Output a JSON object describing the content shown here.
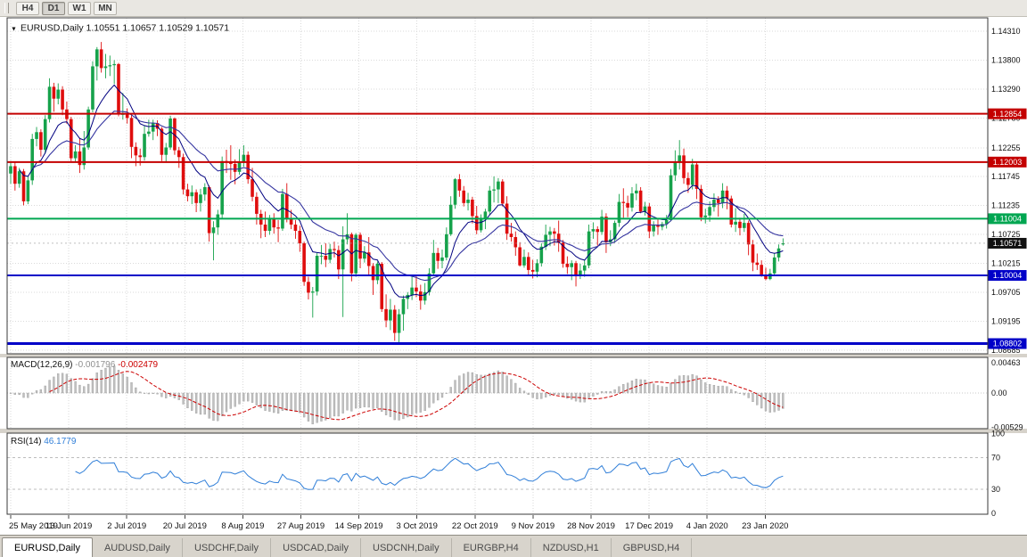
{
  "toolbar": {
    "buttons": [
      {
        "label": "H4",
        "active": false
      },
      {
        "label": "D1",
        "active": true
      },
      {
        "label": "W1",
        "active": false
      },
      {
        "label": "MN",
        "active": false
      }
    ]
  },
  "chart": {
    "title_symbol": "EURUSD,Daily",
    "ohlc": "1.10551 1.10657 1.10529 1.10571"
  },
  "chart_data": {
    "type": "candlestick",
    "symbol": "EURUSD",
    "timeframe": "Daily",
    "price_axis": [
      "1.14310",
      "1.13800",
      "1.13290",
      "1.12780",
      "1.12255",
      "1.11745",
      "1.11235",
      "1.10725",
      "1.10215",
      "1.09705",
      "1.09195",
      "1.08685"
    ],
    "x_labels": [
      "25 May 2019",
      "13 Jun 2019",
      "2 Jul 2019",
      "20 Jul 2019",
      "8 Aug 2019",
      "27 Aug 2019",
      "14 Sep 2019",
      "3 Oct 2019",
      "22 Oct 2019",
      "9 Nov 2019",
      "28 Nov 2019",
      "17 Dec 2019",
      "4 Jan 2020",
      "23 Jan 2020"
    ],
    "levels": [
      {
        "price": 1.12854,
        "label": "1.12854",
        "color": "#c40000",
        "width": 2
      },
      {
        "price": 1.12003,
        "label": "1.12003",
        "color": "#c40000",
        "width": 2
      },
      {
        "price": 1.11004,
        "label": "1.11004",
        "color": "#00a651",
        "width": 2
      },
      {
        "price": 1.10004,
        "label": "1.10004",
        "color": "#0000c8",
        "width": 2
      },
      {
        "price": 1.08802,
        "label": "1.08802",
        "color": "#0000c8",
        "width": 3
      }
    ],
    "current_price": {
      "value": 1.10571,
      "label": "1.10571",
      "color": "#111111"
    },
    "indicators": [
      {
        "name": "MACD",
        "label": "MACD(12,26,9)",
        "values": [
          "-0.001796",
          "-0.002479"
        ],
        "axis": [
          "0.00463",
          "0.00",
          "-0.00529"
        ]
      },
      {
        "name": "RSI",
        "label": "RSI(14)",
        "value": "46.1779",
        "axis": [
          "100",
          "70",
          "30",
          "0"
        ],
        "levels": [
          70,
          30
        ]
      }
    ],
    "colors": {
      "up": "#16a24b",
      "down": "#df0d0d",
      "ma_fast": "#000080",
      "ma_slow": "#3535a0",
      "macd_hist": "#c0c0c0",
      "macd_signal": "#cc0000",
      "rsi": "#2f7ed8"
    },
    "candles": [
      [
        1.118,
        1.1202,
        1.1162,
        1.1193
      ],
      [
        1.1193,
        1.12,
        1.115,
        1.1162
      ],
      [
        1.1162,
        1.119,
        1.1155,
        1.1184
      ],
      [
        1.1184,
        1.1188,
        1.1124,
        1.1131
      ],
      [
        1.1131,
        1.1175,
        1.1126,
        1.1168
      ],
      [
        1.1168,
        1.125,
        1.116,
        1.1241
      ],
      [
        1.1241,
        1.1262,
        1.1228,
        1.1253
      ],
      [
        1.1253,
        1.1258,
        1.121,
        1.1222
      ],
      [
        1.1222,
        1.1283,
        1.1215,
        1.1276
      ],
      [
        1.1276,
        1.1348,
        1.127,
        1.1333
      ],
      [
        1.1333,
        1.134,
        1.1289,
        1.1312
      ],
      [
        1.1312,
        1.1339,
        1.1302,
        1.1328
      ],
      [
        1.1328,
        1.1334,
        1.1283,
        1.1293
      ],
      [
        1.1293,
        1.1307,
        1.1268,
        1.1276
      ],
      [
        1.1276,
        1.128,
        1.1202,
        1.1207
      ],
      [
        1.1207,
        1.123,
        1.12,
        1.1219
      ],
      [
        1.1219,
        1.1243,
        1.1181,
        1.1195
      ],
      [
        1.1195,
        1.1255,
        1.1187,
        1.1226
      ],
      [
        1.1226,
        1.1298,
        1.1222,
        1.1293
      ],
      [
        1.1293,
        1.1378,
        1.1288,
        1.1369
      ],
      [
        1.1369,
        1.1403,
        1.1344,
        1.1399
      ],
      [
        1.1399,
        1.1412,
        1.1358,
        1.1366
      ],
      [
        1.1366,
        1.1391,
        1.1348,
        1.1369
      ],
      [
        1.1369,
        1.1388,
        1.1352,
        1.1371
      ],
      [
        1.1371,
        1.138,
        1.1338,
        1.1373
      ],
      [
        1.1373,
        1.1375,
        1.1281,
        1.1285
      ],
      [
        1.1285,
        1.1322,
        1.1275,
        1.1285
      ],
      [
        1.1285,
        1.1295,
        1.1268,
        1.1278
      ],
      [
        1.1278,
        1.1286,
        1.1207,
        1.1227
      ],
      [
        1.1227,
        1.1235,
        1.1193,
        1.1212
      ],
      [
        1.1212,
        1.1224,
        1.1194,
        1.1209
      ],
      [
        1.1209,
        1.1264,
        1.1203,
        1.125
      ],
      [
        1.125,
        1.1275,
        1.1245,
        1.1254
      ],
      [
        1.1254,
        1.1275,
        1.1239,
        1.1269
      ],
      [
        1.1269,
        1.1274,
        1.1246,
        1.1259
      ],
      [
        1.1259,
        1.1262,
        1.1202,
        1.1213
      ],
      [
        1.1213,
        1.1234,
        1.1199,
        1.1226
      ],
      [
        1.1226,
        1.1282,
        1.1222,
        1.1277
      ],
      [
        1.1277,
        1.1279,
        1.1213,
        1.1221
      ],
      [
        1.1221,
        1.1227,
        1.119,
        1.1209
      ],
      [
        1.1209,
        1.1215,
        1.1143,
        1.1152
      ],
      [
        1.1152,
        1.1162,
        1.1131,
        1.114
      ],
      [
        1.114,
        1.1159,
        1.1126,
        1.1147
      ],
      [
        1.1147,
        1.1152,
        1.1112,
        1.1128
      ],
      [
        1.1128,
        1.1153,
        1.1113,
        1.1143
      ],
      [
        1.1143,
        1.1163,
        1.1132,
        1.1156
      ],
      [
        1.1156,
        1.1159,
        1.106,
        1.1075
      ],
      [
        1.1075,
        1.1096,
        1.1027,
        1.1085
      ],
      [
        1.1085,
        1.1116,
        1.1072,
        1.1108
      ],
      [
        1.1108,
        1.121,
        1.1101,
        1.1202
      ],
      [
        1.1202,
        1.1222,
        1.1181,
        1.12
      ],
      [
        1.12,
        1.123,
        1.1169,
        1.1197
      ],
      [
        1.1197,
        1.1205,
        1.1161,
        1.1183
      ],
      [
        1.1183,
        1.1223,
        1.1178,
        1.1199
      ],
      [
        1.1199,
        1.123,
        1.1192,
        1.1213
      ],
      [
        1.1213,
        1.1219,
        1.1162,
        1.117
      ],
      [
        1.117,
        1.119,
        1.1131,
        1.1139
      ],
      [
        1.1139,
        1.1147,
        1.109,
        1.1109
      ],
      [
        1.1109,
        1.1116,
        1.1066,
        1.109
      ],
      [
        1.109,
        1.1113,
        1.1068,
        1.1079
      ],
      [
        1.1079,
        1.1107,
        1.1072,
        1.11
      ],
      [
        1.11,
        1.111,
        1.1074,
        1.1085
      ],
      [
        1.1085,
        1.1098,
        1.1059,
        1.1083
      ],
      [
        1.1083,
        1.1153,
        1.1079,
        1.1144
      ],
      [
        1.1144,
        1.1163,
        1.1094,
        1.1101
      ],
      [
        1.1101,
        1.1116,
        1.1082,
        1.109
      ],
      [
        1.109,
        1.1098,
        1.1065,
        1.1079
      ],
      [
        1.1079,
        1.1088,
        1.1042,
        1.1057
      ],
      [
        1.1057,
        1.106,
        1.0982,
        1.0989
      ],
      [
        1.0989,
        1.0998,
        1.0958,
        1.097
      ],
      [
        1.097,
        1.098,
        1.0926,
        1.0972
      ],
      [
        1.0972,
        1.104,
        1.0965,
        1.1035
      ],
      [
        1.1035,
        1.1054,
        1.102,
        1.1035
      ],
      [
        1.1035,
        1.1057,
        1.1015,
        1.1028
      ],
      [
        1.1028,
        1.1056,
        1.1022,
        1.1047
      ],
      [
        1.1047,
        1.106,
        1.1032,
        1.1045
      ],
      [
        1.1045,
        1.1053,
        1.0994,
        1.1011
      ],
      [
        1.1011,
        1.1087,
        1.0927,
        1.1064
      ],
      [
        1.1064,
        1.111,
        1.1055,
        1.1073
      ],
      [
        1.1073,
        1.1076,
        1.099,
        1.1004
      ],
      [
        1.1004,
        1.1075,
        1.0998,
        1.1072
      ],
      [
        1.1072,
        1.1076,
        1.1013,
        1.103
      ],
      [
        1.103,
        1.1052,
        1.1023,
        1.1041
      ],
      [
        1.1041,
        1.1068,
        1.0999,
        1.1017
      ],
      [
        1.1017,
        1.1022,
        1.0966,
        1.0992
      ],
      [
        1.0992,
        1.1025,
        1.0985,
        1.1021
      ],
      [
        1.1021,
        1.1024,
        1.0936,
        1.0941
      ],
      [
        1.0941,
        1.0967,
        1.0909,
        1.0921
      ],
      [
        1.0921,
        1.0959,
        1.0904,
        1.094
      ],
      [
        1.094,
        1.0948,
        1.0885,
        1.0899
      ],
      [
        1.0899,
        1.0941,
        1.0879,
        1.0932
      ],
      [
        1.0932,
        1.0965,
        1.0903,
        1.0959
      ],
      [
        1.0959,
        1.0971,
        1.0941,
        1.0966
      ],
      [
        1.0966,
        1.1,
        1.0957,
        1.0979
      ],
      [
        1.0979,
        1.0999,
        1.0962,
        1.0972
      ],
      [
        1.0972,
        1.0984,
        1.094,
        1.0956
      ],
      [
        1.0956,
        1.0987,
        1.0949,
        1.0971
      ],
      [
        1.0971,
        1.1013,
        1.0965,
        1.1004
      ],
      [
        1.1004,
        1.1063,
        1.1001,
        1.104
      ],
      [
        1.104,
        1.1049,
        1.1012,
        1.1026
      ],
      [
        1.1026,
        1.1046,
        1.1013,
        1.1032
      ],
      [
        1.1032,
        1.1085,
        1.1027,
        1.1073
      ],
      [
        1.1073,
        1.114,
        1.107,
        1.1125
      ],
      [
        1.1125,
        1.1172,
        1.1118,
        1.117
      ],
      [
        1.117,
        1.1179,
        1.1139,
        1.115
      ],
      [
        1.115,
        1.1158,
        1.1122,
        1.1128
      ],
      [
        1.1128,
        1.1146,
        1.1115,
        1.1134
      ],
      [
        1.1134,
        1.1139,
        1.1092,
        1.1105
      ],
      [
        1.1105,
        1.1123,
        1.1073,
        1.108
      ],
      [
        1.108,
        1.1108,
        1.1076,
        1.1099
      ],
      [
        1.1099,
        1.1118,
        1.1082,
        1.1113
      ],
      [
        1.1113,
        1.1158,
        1.1107,
        1.115
      ],
      [
        1.115,
        1.1175,
        1.1129,
        1.1152
      ],
      [
        1.1152,
        1.1172,
        1.1128,
        1.1166
      ],
      [
        1.1166,
        1.117,
        1.1122,
        1.1127
      ],
      [
        1.1127,
        1.114,
        1.1063,
        1.1074
      ],
      [
        1.1074,
        1.1093,
        1.106,
        1.1068
      ],
      [
        1.1068,
        1.1078,
        1.1035,
        1.105
      ],
      [
        1.105,
        1.1059,
        1.1016,
        1.1018
      ],
      [
        1.1018,
        1.1046,
        1.1014,
        1.1033
      ],
      [
        1.1033,
        1.1041,
        1.1002,
        1.101
      ],
      [
        1.101,
        1.1028,
        1.0995,
        1.1007
      ],
      [
        1.1007,
        1.1029,
        1.0997,
        1.1022
      ],
      [
        1.1022,
        1.1057,
        1.1016,
        1.1051
      ],
      [
        1.1051,
        1.109,
        1.1045,
        1.1072
      ],
      [
        1.1072,
        1.1086,
        1.1052,
        1.1078
      ],
      [
        1.1078,
        1.1084,
        1.1053,
        1.1074
      ],
      [
        1.1074,
        1.1097,
        1.1042,
        1.1058
      ],
      [
        1.1058,
        1.1063,
        1.1014,
        1.1021
      ],
      [
        1.1021,
        1.1034,
        1.1003,
        1.1015
      ],
      [
        1.1015,
        1.1027,
        1.0992,
        1.1022
      ],
      [
        1.1022,
        1.1026,
        1.0981,
        1.1001
      ],
      [
        1.1001,
        1.1021,
        1.0994,
        1.1009
      ],
      [
        1.1009,
        1.1028,
        1.0998,
        1.1018
      ],
      [
        1.1018,
        1.109,
        1.1013,
        1.1078
      ],
      [
        1.1078,
        1.1094,
        1.1065,
        1.1082
      ],
      [
        1.1082,
        1.1087,
        1.1053,
        1.1077
      ],
      [
        1.1077,
        1.1116,
        1.1072,
        1.1104
      ],
      [
        1.1104,
        1.111,
        1.104,
        1.1059
      ],
      [
        1.1059,
        1.108,
        1.1052,
        1.1064
      ],
      [
        1.1064,
        1.1097,
        1.1058,
        1.1093
      ],
      [
        1.1093,
        1.1144,
        1.1086,
        1.113
      ],
      [
        1.113,
        1.1154,
        1.1102,
        1.1128
      ],
      [
        1.1128,
        1.1141,
        1.1103,
        1.112
      ],
      [
        1.112,
        1.1156,
        1.1113,
        1.1145
      ],
      [
        1.1145,
        1.1162,
        1.1133,
        1.115
      ],
      [
        1.115,
        1.1156,
        1.111,
        1.1113
      ],
      [
        1.1113,
        1.113,
        1.1106,
        1.1122
      ],
      [
        1.1122,
        1.1128,
        1.1066,
        1.1078
      ],
      [
        1.1078,
        1.1096,
        1.1069,
        1.1089
      ],
      [
        1.1089,
        1.1099,
        1.1072,
        1.1086
      ],
      [
        1.1086,
        1.1095,
        1.108,
        1.1091
      ],
      [
        1.1091,
        1.1107,
        1.1083,
        1.1098
      ],
      [
        1.1098,
        1.1188,
        1.1096,
        1.1177
      ],
      [
        1.1177,
        1.1221,
        1.1167,
        1.1199
      ],
      [
        1.1199,
        1.1239,
        1.1187,
        1.1212
      ],
      [
        1.1212,
        1.1224,
        1.1162,
        1.1172
      ],
      [
        1.1172,
        1.1182,
        1.1146,
        1.116
      ],
      [
        1.116,
        1.1206,
        1.1152,
        1.1196
      ],
      [
        1.1196,
        1.1199,
        1.1135,
        1.1153
      ],
      [
        1.1153,
        1.116,
        1.1096,
        1.1103
      ],
      [
        1.1103,
        1.1118,
        1.1092,
        1.1106
      ],
      [
        1.1106,
        1.1131,
        1.1095,
        1.1121
      ],
      [
        1.1121,
        1.1145,
        1.1113,
        1.1134
      ],
      [
        1.1134,
        1.114,
        1.1104,
        1.1128
      ],
      [
        1.1128,
        1.1163,
        1.1119,
        1.115
      ],
      [
        1.115,
        1.1158,
        1.1117,
        1.1136
      ],
      [
        1.1136,
        1.1141,
        1.1085,
        1.109
      ],
      [
        1.109,
        1.1119,
        1.1077,
        1.1095
      ],
      [
        1.1095,
        1.1102,
        1.1071,
        1.1084
      ],
      [
        1.1084,
        1.1109,
        1.1077,
        1.1093
      ],
      [
        1.1093,
        1.1097,
        1.1036,
        1.1055
      ],
      [
        1.1055,
        1.1063,
        1.1008,
        1.1023
      ],
      [
        1.1023,
        1.1039,
        1.101,
        1.1019
      ],
      [
        1.1019,
        1.1027,
        1.0998,
        1.1002
      ],
      [
        1.1002,
        1.1014,
        1.0992,
        1.0994
      ],
      [
        1.0994,
        1.1012,
        1.0992,
        1.1004
      ],
      [
        1.1004,
        1.104,
        1.1,
        1.1032
      ],
      [
        1.1032,
        1.1055,
        1.1025,
        1.1048
      ],
      [
        1.10551,
        1.10657,
        1.10529,
        1.10571
      ]
    ]
  },
  "tabs": [
    {
      "label": "EURUSD,Daily",
      "active": true
    },
    {
      "label": "AUDUSD,Daily",
      "active": false
    },
    {
      "label": "USDCHF,Daily",
      "active": false
    },
    {
      "label": "USDCAD,Daily",
      "active": false
    },
    {
      "label": "USDCNH,Daily",
      "active": false
    },
    {
      "label": "EURGBP,H4",
      "active": false
    },
    {
      "label": "NZDUSD,H1",
      "active": false
    },
    {
      "label": "GBPUSD,H4",
      "active": false
    }
  ]
}
